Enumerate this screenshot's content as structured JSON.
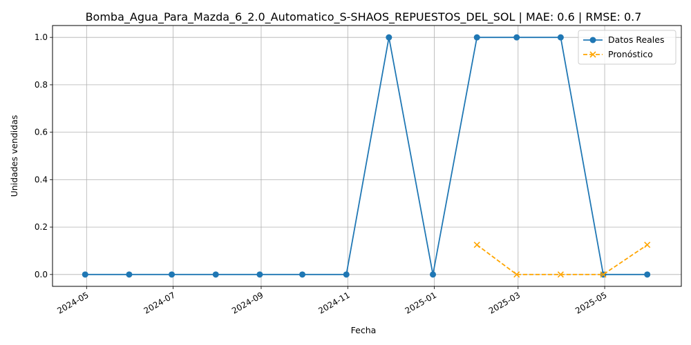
{
  "chart_data": {
    "type": "line",
    "title": "Bomba_Agua_Para_Mazda_6_2.0_Automatico_S-SHAOS_REPUESTOS_DEL_SOL | MAE: 0.6 | RMSE: 0.7",
    "xlabel": "Fecha",
    "ylabel": "Unidades vendidas",
    "xlim": [
      "2024-04-07",
      "2025-06-24"
    ],
    "ylim": [
      -0.05,
      1.05
    ],
    "x_ticks": [
      "2024-05",
      "2024-07",
      "2024-09",
      "2024-11",
      "2025-01",
      "2025-03",
      "2025-05"
    ],
    "y_ticks": [
      "0.0",
      "0.2",
      "0.4",
      "0.6",
      "0.8",
      "1.0"
    ],
    "grid": true,
    "legend_position": "top-right",
    "series": [
      {
        "name": "Datos Reales",
        "color": "#1f77b4",
        "style": "solid",
        "marker": "circle",
        "x": [
          "2024-04-30",
          "2024-05-31",
          "2024-06-30",
          "2024-07-31",
          "2024-08-31",
          "2024-09-30",
          "2024-10-31",
          "2024-11-30",
          "2024-12-31",
          "2025-01-31",
          "2025-02-28",
          "2025-03-31",
          "2025-04-30",
          "2025-05-31"
        ],
        "values": [
          0,
          0,
          0,
          0,
          0,
          0,
          0,
          1,
          0,
          1,
          1,
          1,
          0,
          0
        ]
      },
      {
        "name": "Pronóstico",
        "color": "#ffa500",
        "style": "dashed",
        "marker": "x",
        "x": [
          "2025-01-31",
          "2025-02-28",
          "2025-03-31",
          "2025-04-30",
          "2025-05-31"
        ],
        "values": [
          0.125,
          0,
          0,
          0,
          0.125
        ]
      }
    ]
  }
}
